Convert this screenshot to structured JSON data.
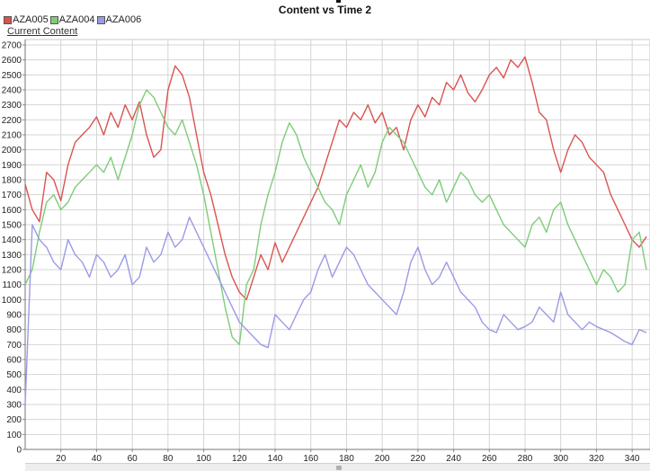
{
  "chart_data": {
    "type": "line",
    "title": "Content vs Time 2",
    "subtitle": "Current Content",
    "xlabel": "",
    "ylabel": "",
    "xlim": [
      0,
      350
    ],
    "ylim": [
      0,
      2700
    ],
    "x_ticks": [
      20,
      40,
      60,
      80,
      100,
      120,
      140,
      160,
      180,
      200,
      220,
      240,
      260,
      280,
      300,
      320,
      340
    ],
    "y_ticks": [
      0,
      100,
      200,
      300,
      400,
      500,
      600,
      700,
      800,
      900,
      1000,
      1100,
      1200,
      1300,
      1400,
      1500,
      1600,
      1700,
      1800,
      1900,
      2000,
      2100,
      2200,
      2300,
      2400,
      2500,
      2600,
      2700
    ],
    "grid": true,
    "legend_position": "top-left",
    "series": [
      {
        "name": "AZA005",
        "color": "#d9534f",
        "x": [
          0,
          4,
          8,
          12,
          16,
          20,
          24,
          28,
          32,
          36,
          40,
          44,
          48,
          52,
          56,
          60,
          64,
          68,
          72,
          76,
          80,
          84,
          88,
          92,
          96,
          100,
          104,
          108,
          112,
          116,
          120,
          124,
          128,
          132,
          136,
          140,
          144,
          148,
          152,
          156,
          160,
          164,
          168,
          172,
          176,
          180,
          184,
          188,
          192,
          196,
          200,
          204,
          208,
          212,
          216,
          220,
          224,
          228,
          232,
          236,
          240,
          244,
          248,
          252,
          256,
          260,
          264,
          268,
          272,
          276,
          280,
          284,
          288,
          292,
          296,
          300,
          304,
          308,
          312,
          316,
          320,
          324,
          328,
          332,
          336,
          340,
          344,
          348
        ],
        "values": [
          1770,
          1600,
          1520,
          1850,
          1800,
          1660,
          1900,
          2050,
          2100,
          2150,
          2220,
          2100,
          2250,
          2150,
          2300,
          2200,
          2320,
          2100,
          1950,
          2000,
          2400,
          2560,
          2500,
          2350,
          2100,
          1850,
          1700,
          1500,
          1300,
          1150,
          1050,
          1000,
          1150,
          1300,
          1200,
          1380,
          1250,
          1350,
          1450,
          1550,
          1650,
          1750,
          1900,
          2050,
          2200,
          2150,
          2250,
          2200,
          2300,
          2180,
          2250,
          2100,
          2150,
          2000,
          2200,
          2300,
          2220,
          2350,
          2300,
          2450,
          2400,
          2500,
          2380,
          2320,
          2400,
          2500,
          2550,
          2480,
          2600,
          2550,
          2620,
          2450,
          2250,
          2200,
          2000,
          1850,
          2000,
          2100,
          2050,
          1950,
          1900,
          1850,
          1700,
          1600,
          1500,
          1400,
          1350,
          1420
        ]
      },
      {
        "name": "AZA004",
        "color": "#7dcc78",
        "x": [
          0,
          4,
          8,
          12,
          16,
          20,
          24,
          28,
          32,
          36,
          40,
          44,
          48,
          52,
          56,
          60,
          64,
          68,
          72,
          76,
          80,
          84,
          88,
          92,
          96,
          100,
          104,
          108,
          112,
          116,
          120,
          124,
          128,
          132,
          136,
          140,
          144,
          148,
          152,
          156,
          160,
          164,
          168,
          172,
          176,
          180,
          184,
          188,
          192,
          196,
          200,
          204,
          208,
          212,
          216,
          220,
          224,
          228,
          232,
          236,
          240,
          244,
          248,
          252,
          256,
          260,
          264,
          268,
          272,
          276,
          280,
          284,
          288,
          292,
          296,
          300,
          304,
          308,
          312,
          316,
          320,
          324,
          328,
          332,
          336,
          340,
          344,
          348
        ],
        "values": [
          1100,
          1200,
          1450,
          1650,
          1700,
          1600,
          1650,
          1750,
          1800,
          1850,
          1900,
          1850,
          1950,
          1800,
          1950,
          2100,
          2300,
          2400,
          2350,
          2250,
          2150,
          2100,
          2200,
          2050,
          1900,
          1700,
          1450,
          1200,
          950,
          750,
          700,
          1100,
          1200,
          1500,
          1700,
          1850,
          2050,
          2180,
          2100,
          1950,
          1850,
          1750,
          1650,
          1600,
          1500,
          1700,
          1800,
          1900,
          1750,
          1850,
          2050,
          2150,
          2100,
          2050,
          1950,
          1850,
          1750,
          1700,
          1800,
          1650,
          1750,
          1850,
          1800,
          1700,
          1650,
          1700,
          1600,
          1500,
          1450,
          1400,
          1350,
          1500,
          1550,
          1450,
          1600,
          1650,
          1500,
          1400,
          1300,
          1200,
          1100,
          1200,
          1150,
          1050,
          1100,
          1400,
          1450,
          1200
        ]
      },
      {
        "name": "AZA006",
        "color": "#9a9ae6",
        "x": [
          0,
          4,
          8,
          12,
          16,
          20,
          24,
          28,
          32,
          36,
          40,
          44,
          48,
          52,
          56,
          60,
          64,
          68,
          72,
          76,
          80,
          84,
          88,
          92,
          96,
          100,
          104,
          108,
          112,
          116,
          120,
          124,
          128,
          132,
          136,
          140,
          144,
          148,
          152,
          156,
          160,
          164,
          168,
          172,
          176,
          180,
          184,
          188,
          192,
          196,
          200,
          204,
          208,
          212,
          216,
          220,
          224,
          228,
          232,
          236,
          240,
          244,
          248,
          252,
          256,
          260,
          264,
          268,
          272,
          276,
          280,
          284,
          288,
          292,
          296,
          300,
          304,
          308,
          312,
          316,
          320,
          324,
          328,
          332,
          336,
          340,
          344,
          348
        ],
        "values": [
          300,
          1500,
          1400,
          1350,
          1250,
          1200,
          1400,
          1300,
          1250,
          1150,
          1300,
          1250,
          1150,
          1200,
          1300,
          1100,
          1150,
          1350,
          1250,
          1300,
          1450,
          1350,
          1400,
          1550,
          1450,
          1350,
          1250,
          1150,
          1050,
          950,
          850,
          800,
          750,
          700,
          680,
          900,
          850,
          800,
          900,
          1000,
          1050,
          1200,
          1300,
          1150,
          1250,
          1350,
          1300,
          1200,
          1100,
          1050,
          1000,
          950,
          900,
          1050,
          1250,
          1350,
          1200,
          1100,
          1150,
          1250,
          1150,
          1050,
          1000,
          950,
          850,
          800,
          780,
          900,
          850,
          800,
          820,
          850,
          950,
          900,
          850,
          1050,
          900,
          850,
          800,
          850,
          820,
          800,
          780,
          750,
          720,
          700,
          800,
          780
        ]
      }
    ]
  }
}
